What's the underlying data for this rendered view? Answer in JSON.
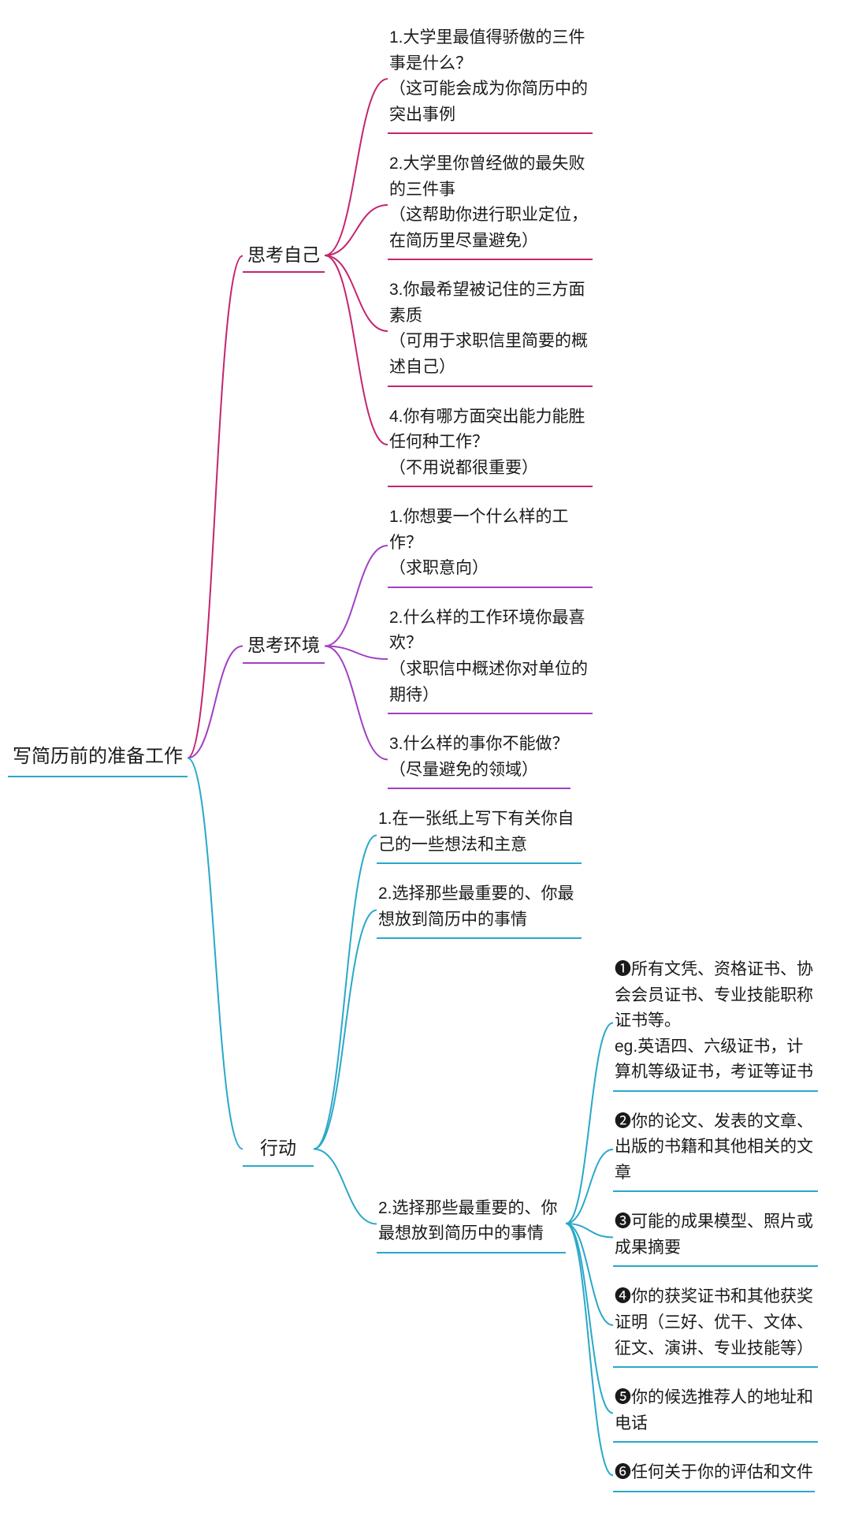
{
  "diagram": {
    "type": "mindmap-tree",
    "background_color": "#ffffff",
    "text_color": "#1a1a1a",
    "font_family": "Kaiti / handwritten-style",
    "font_size_root": 24,
    "font_size_branch": 23,
    "font_size_leaf": 21,
    "line_width": 2,
    "root": {
      "label": "写简历前的准备工作",
      "underline_color": "#2aa8c9"
    },
    "branches": [
      {
        "label": "思考自己",
        "color": "#c4256f",
        "children": [
          {
            "text": "1.大学里最值得骄傲的三件事是什么？\n（这可能会成为你简历中的突出事例"
          },
          {
            "text": "2.大学里你曾经做的最失败的三件事\n（这帮助你进行职业定位，在简历里尽量避免）"
          },
          {
            "text": "3.你最希望被记住的三方面素质\n（可用于求职信里简要的概述自己）"
          },
          {
            "text": "4.你有哪方面突出能力能胜任何种工作？\n（不用说都很重要）"
          }
        ]
      },
      {
        "label": "思考环境",
        "color": "#a23fc4",
        "children": [
          {
            "text": "1.你想要一个什么样的工作？\n（求职意向）"
          },
          {
            "text": "2.什么样的工作环境你最喜欢？\n（求职信中概述你对单位的期待）"
          },
          {
            "text": "3.什么样的事你不能做？\n（尽量避免的领域）"
          }
        ]
      },
      {
        "label": "行动",
        "color": "#2aa8c9",
        "children": [
          {
            "text": "1.在一张纸上写下有关你自己的一些想法和主意"
          },
          {
            "text": "2.选择那些最重要的、你最想放到简历中的事情"
          },
          {
            "text": "2.选择那些最重要的、你最想放到简历中的事情",
            "children": [
              {
                "text": "❶所有文凭、资格证书、协会会员证书、专业技能职称证书等。\neg.英语四、六级证书，计算机等级证书，考证等证书"
              },
              {
                "text": "❷你的论文、发表的文章、出版的书籍和其他相关的文章"
              },
              {
                "text": "❸可能的成果模型、照片或成果摘要"
              },
              {
                "text": "❹你的获奖证书和其他获奖证明（三好、优干、文体、征文、演讲、专业技能等）"
              },
              {
                "text": "❺你的候选推荐人的地址和电话"
              },
              {
                "text": "❻任何关于你的评估和文件"
              }
            ]
          }
        ]
      }
    ]
  }
}
